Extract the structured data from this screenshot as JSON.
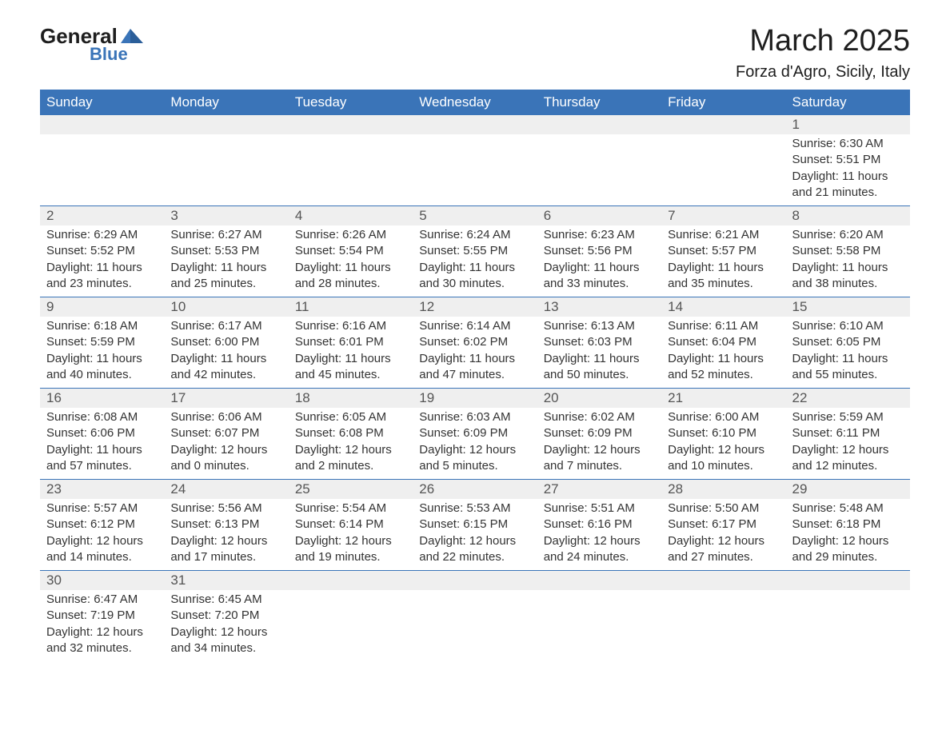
{
  "brand": {
    "line1": "General",
    "line2": "Blue"
  },
  "title": "March 2025",
  "location": "Forza d'Agro, Sicily, Italy",
  "colors": {
    "header_bg": "#3a74b8",
    "header_text": "#ffffff",
    "daynum_bg": "#efefef",
    "text": "#333333",
    "rule": "#3a74b8",
    "brand_blue": "#3a74b8",
    "page_bg": "#ffffff"
  },
  "fonts": {
    "title_size_pt": 29,
    "location_size_pt": 15,
    "header_size_pt": 13,
    "daynum_size_pt": 13,
    "body_size_pt": 11
  },
  "weekdays": [
    "Sunday",
    "Monday",
    "Tuesday",
    "Wednesday",
    "Thursday",
    "Friday",
    "Saturday"
  ],
  "labels": {
    "sunrise": "Sunrise: ",
    "sunset": "Sunset: ",
    "daylight": "Daylight: "
  },
  "weeks": [
    [
      null,
      null,
      null,
      null,
      null,
      null,
      {
        "day": "1",
        "sunrise": "6:30 AM",
        "sunset": "5:51 PM",
        "daylight": "11 hours and 21 minutes."
      }
    ],
    [
      {
        "day": "2",
        "sunrise": "6:29 AM",
        "sunset": "5:52 PM",
        "daylight": "11 hours and 23 minutes."
      },
      {
        "day": "3",
        "sunrise": "6:27 AM",
        "sunset": "5:53 PM",
        "daylight": "11 hours and 25 minutes."
      },
      {
        "day": "4",
        "sunrise": "6:26 AM",
        "sunset": "5:54 PM",
        "daylight": "11 hours and 28 minutes."
      },
      {
        "day": "5",
        "sunrise": "6:24 AM",
        "sunset": "5:55 PM",
        "daylight": "11 hours and 30 minutes."
      },
      {
        "day": "6",
        "sunrise": "6:23 AM",
        "sunset": "5:56 PM",
        "daylight": "11 hours and 33 minutes."
      },
      {
        "day": "7",
        "sunrise": "6:21 AM",
        "sunset": "5:57 PM",
        "daylight": "11 hours and 35 minutes."
      },
      {
        "day": "8",
        "sunrise": "6:20 AM",
        "sunset": "5:58 PM",
        "daylight": "11 hours and 38 minutes."
      }
    ],
    [
      {
        "day": "9",
        "sunrise": "6:18 AM",
        "sunset": "5:59 PM",
        "daylight": "11 hours and 40 minutes."
      },
      {
        "day": "10",
        "sunrise": "6:17 AM",
        "sunset": "6:00 PM",
        "daylight": "11 hours and 42 minutes."
      },
      {
        "day": "11",
        "sunrise": "6:16 AM",
        "sunset": "6:01 PM",
        "daylight": "11 hours and 45 minutes."
      },
      {
        "day": "12",
        "sunrise": "6:14 AM",
        "sunset": "6:02 PM",
        "daylight": "11 hours and 47 minutes."
      },
      {
        "day": "13",
        "sunrise": "6:13 AM",
        "sunset": "6:03 PM",
        "daylight": "11 hours and 50 minutes."
      },
      {
        "day": "14",
        "sunrise": "6:11 AM",
        "sunset": "6:04 PM",
        "daylight": "11 hours and 52 minutes."
      },
      {
        "day": "15",
        "sunrise": "6:10 AM",
        "sunset": "6:05 PM",
        "daylight": "11 hours and 55 minutes."
      }
    ],
    [
      {
        "day": "16",
        "sunrise": "6:08 AM",
        "sunset": "6:06 PM",
        "daylight": "11 hours and 57 minutes."
      },
      {
        "day": "17",
        "sunrise": "6:06 AM",
        "sunset": "6:07 PM",
        "daylight": "12 hours and 0 minutes."
      },
      {
        "day": "18",
        "sunrise": "6:05 AM",
        "sunset": "6:08 PM",
        "daylight": "12 hours and 2 minutes."
      },
      {
        "day": "19",
        "sunrise": "6:03 AM",
        "sunset": "6:09 PM",
        "daylight": "12 hours and 5 minutes."
      },
      {
        "day": "20",
        "sunrise": "6:02 AM",
        "sunset": "6:09 PM",
        "daylight": "12 hours and 7 minutes."
      },
      {
        "day": "21",
        "sunrise": "6:00 AM",
        "sunset": "6:10 PM",
        "daylight": "12 hours and 10 minutes."
      },
      {
        "day": "22",
        "sunrise": "5:59 AM",
        "sunset": "6:11 PM",
        "daylight": "12 hours and 12 minutes."
      }
    ],
    [
      {
        "day": "23",
        "sunrise": "5:57 AM",
        "sunset": "6:12 PM",
        "daylight": "12 hours and 14 minutes."
      },
      {
        "day": "24",
        "sunrise": "5:56 AM",
        "sunset": "6:13 PM",
        "daylight": "12 hours and 17 minutes."
      },
      {
        "day": "25",
        "sunrise": "5:54 AM",
        "sunset": "6:14 PM",
        "daylight": "12 hours and 19 minutes."
      },
      {
        "day": "26",
        "sunrise": "5:53 AM",
        "sunset": "6:15 PM",
        "daylight": "12 hours and 22 minutes."
      },
      {
        "day": "27",
        "sunrise": "5:51 AM",
        "sunset": "6:16 PM",
        "daylight": "12 hours and 24 minutes."
      },
      {
        "day": "28",
        "sunrise": "5:50 AM",
        "sunset": "6:17 PM",
        "daylight": "12 hours and 27 minutes."
      },
      {
        "day": "29",
        "sunrise": "5:48 AM",
        "sunset": "6:18 PM",
        "daylight": "12 hours and 29 minutes."
      }
    ],
    [
      {
        "day": "30",
        "sunrise": "6:47 AM",
        "sunset": "7:19 PM",
        "daylight": "12 hours and 32 minutes."
      },
      {
        "day": "31",
        "sunrise": "6:45 AM",
        "sunset": "7:20 PM",
        "daylight": "12 hours and 34 minutes."
      },
      null,
      null,
      null,
      null,
      null
    ]
  ]
}
